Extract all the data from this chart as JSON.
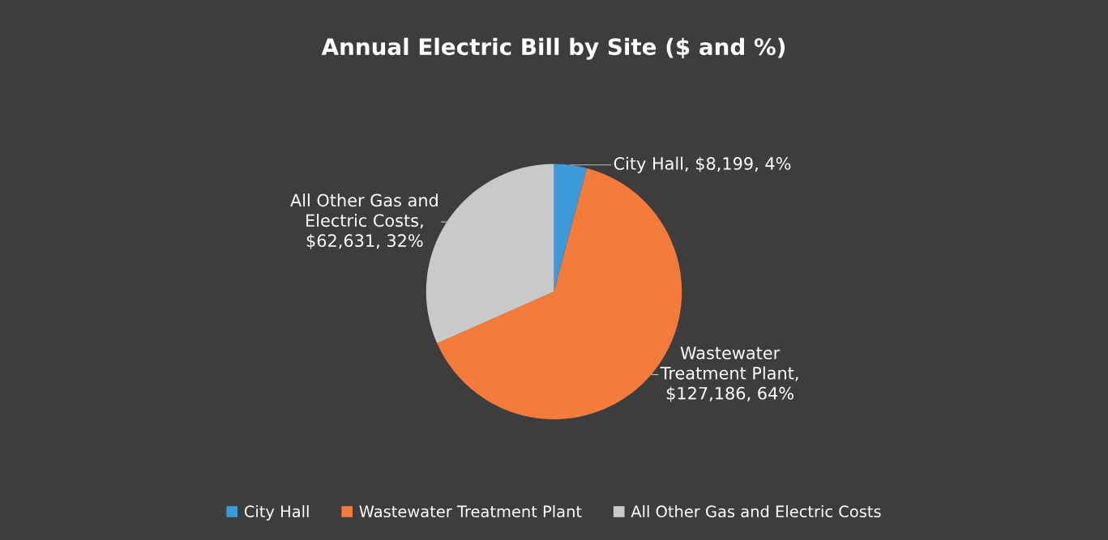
{
  "chart_data": {
    "type": "pie",
    "title": "Annual Electric Bill by Site ($ and %)",
    "categories": [
      "City Hall",
      "Wastewater Treatment Plant",
      "All Other Gas and Electric Costs"
    ],
    "values": [
      8199,
      127186,
      62631
    ],
    "colors": [
      "#3b9ad9",
      "#f47b3a",
      "#c9c9c9"
    ],
    "value_labels": [
      "City Hall, $8,199, 4%",
      "Wastewater\nTreatment Plant,\n$127,186, 64%",
      "All Other Gas and\nElectric Costs,\n$62,631, 32%"
    ],
    "legend": "bottom"
  }
}
